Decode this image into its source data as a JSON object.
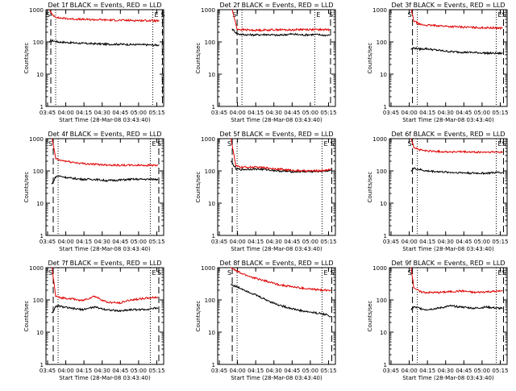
{
  "common": {
    "ylabel": "Counts/sec",
    "xlabel": "Start Time (28-Mar-08 03:43:40)",
    "xtick_labels": [
      "03:45",
      "04:00",
      "04:15",
      "04:30",
      "04:45",
      "05:00",
      "05:15"
    ],
    "ytick_labels": [
      "1",
      "10",
      "100",
      "1000"
    ],
    "yscale": "log",
    "ylim": [
      1,
      1000
    ],
    "xlim_minutes_after_start": [
      0,
      97
    ],
    "marker_labels": {
      "start": "S",
      "end": "E"
    },
    "colors": {
      "events": "#000000",
      "lld": "#e00000",
      "axes": "#000000"
    }
  },
  "chart_data": [
    {
      "type": "line",
      "title": "Det 1f BLACK = Events, RED = LLD",
      "x_minutes": [
        3,
        5,
        10,
        20,
        30,
        40,
        50,
        60,
        70,
        80,
        90,
        93
      ],
      "series": [
        {
          "name": "Events",
          "values": [
            100,
            110,
            100,
            95,
            90,
            88,
            85,
            85,
            83,
            82,
            80,
            80
          ]
        },
        {
          "name": "LLD",
          "values": [
            1000,
            700,
            560,
            520,
            500,
            490,
            480,
            470,
            465,
            460,
            455,
            450
          ]
        }
      ],
      "dashed_markers_minutes": [
        4,
        96
      ],
      "dotted_markers_minutes": [
        8,
        88
      ]
    },
    {
      "type": "line",
      "title": "Det 2f BLACK = Events, RED = LLD",
      "x_minutes": [
        12,
        16,
        20,
        30,
        40,
        50,
        60,
        70,
        80,
        90,
        92
      ],
      "series": [
        {
          "name": "Events",
          "values": [
            250,
            180,
            170,
            165,
            170,
            160,
            175,
            165,
            170,
            160,
            160
          ]
        },
        {
          "name": "LLD",
          "values": [
            1000,
            250,
            240,
            230,
            235,
            240,
            235,
            245,
            240,
            240,
            240
          ]
        }
      ],
      "dashed_markers_minutes": [
        16,
        93
      ],
      "dotted_markers_minutes": [
        20,
        80
      ]
    },
    {
      "type": "line",
      "title": "Det 3f BLACK = Events, RED = LLD",
      "x_minutes": [
        18,
        20,
        25,
        30,
        40,
        50,
        60,
        70,
        80,
        90,
        93
      ],
      "series": [
        {
          "name": "Events",
          "values": [
            60,
            65,
            60,
            62,
            55,
            50,
            48,
            47,
            45,
            44,
            45
          ]
        },
        {
          "name": "LLD",
          "values": [
            1000,
            450,
            350,
            330,
            320,
            300,
            290,
            280,
            275,
            270,
            270
          ]
        }
      ],
      "dashed_markers_minutes": [
        19,
        94
      ],
      "dotted_markers_minutes": [
        23,
        88
      ]
    },
    {
      "type": "line",
      "title": "Det 4f BLACK = Events, RED = LLD",
      "x_minutes": [
        5,
        8,
        10,
        20,
        30,
        40,
        50,
        60,
        70,
        80,
        90,
        92
      ],
      "series": [
        {
          "name": "Events",
          "values": [
            40,
            65,
            70,
            60,
            55,
            55,
            50,
            52,
            55,
            55,
            55,
            55
          ]
        },
        {
          "name": "LLD",
          "values": [
            1000,
            250,
            220,
            190,
            170,
            160,
            155,
            150,
            150,
            150,
            150,
            150
          ]
        }
      ],
      "dashed_markers_minutes": [
        6,
        93
      ],
      "dotted_markers_minutes": [
        10,
        86
      ]
    },
    {
      "type": "line",
      "title": "Det 5f BLACK = Events, RED = LLD",
      "x_minutes": [
        11,
        15,
        20,
        30,
        40,
        50,
        60,
        70,
        80,
        90,
        93
      ],
      "series": [
        {
          "name": "Events",
          "values": [
            200,
            115,
            110,
            115,
            110,
            100,
            95,
            95,
            95,
            100,
            105
          ]
        },
        {
          "name": "LLD",
          "values": [
            1000,
            140,
            130,
            130,
            125,
            115,
            105,
            100,
            100,
            105,
            115
          ]
        }
      ],
      "dashed_markers_minutes": [
        12,
        94
      ],
      "dotted_markers_minutes": [
        16,
        86
      ]
    },
    {
      "type": "line",
      "title": "Det 6f BLACK = Events, RED = LLD",
      "x_minutes": [
        18,
        20,
        25,
        30,
        40,
        50,
        60,
        70,
        80,
        90,
        93
      ],
      "series": [
        {
          "name": "Events",
          "values": [
            100,
            120,
            110,
            100,
            95,
            90,
            88,
            85,
            85,
            90,
            90
          ]
        },
        {
          "name": "LLD",
          "values": [
            1000,
            550,
            450,
            420,
            400,
            390,
            390,
            380,
            380,
            385,
            390
          ]
        }
      ],
      "dashed_markers_minutes": [
        19,
        94
      ],
      "dotted_markers_minutes": [
        23,
        88
      ]
    },
    {
      "type": "line",
      "title": "Det 7f BLACK = Events, RED = LLD",
      "x_minutes": [
        5,
        8,
        10,
        20,
        30,
        40,
        50,
        60,
        70,
        80,
        90,
        92
      ],
      "series": [
        {
          "name": "Events",
          "values": [
            40,
            60,
            65,
            55,
            50,
            60,
            50,
            45,
            50,
            50,
            55,
            55
          ]
        },
        {
          "name": "LLD",
          "values": [
            1000,
            130,
            120,
            110,
            95,
            130,
            85,
            80,
            100,
            110,
            120,
            120
          ]
        }
      ],
      "dashed_markers_minutes": [
        6,
        93
      ],
      "dotted_markers_minutes": [
        10,
        86
      ]
    },
    {
      "type": "line",
      "title": "Det 8f BLACK = Events, RED = LLD",
      "x_minutes": [
        11,
        15,
        20,
        30,
        40,
        50,
        60,
        70,
        80,
        90,
        93
      ],
      "series": [
        {
          "name": "Events",
          "values": [
            300,
            260,
            220,
            150,
            100,
            70,
            55,
            45,
            40,
            35,
            30
          ]
        },
        {
          "name": "LLD",
          "values": [
            1000,
            800,
            650,
            480,
            380,
            300,
            260,
            230,
            210,
            200,
            200
          ]
        }
      ],
      "dashed_markers_minutes": [
        12,
        94
      ],
      "dotted_markers_minutes": [
        16,
        86
      ]
    },
    {
      "type": "line",
      "title": "Det 9f BLACK = Events, RED = LLD",
      "x_minutes": [
        18,
        20,
        25,
        30,
        40,
        50,
        60,
        70,
        80,
        90,
        93
      ],
      "series": [
        {
          "name": "Events",
          "values": [
            50,
            60,
            55,
            50,
            55,
            65,
            60,
            55,
            60,
            55,
            55
          ]
        },
        {
          "name": "LLD",
          "values": [
            1000,
            250,
            180,
            170,
            170,
            180,
            190,
            170,
            180,
            185,
            190
          ]
        }
      ],
      "dashed_markers_minutes": [
        19,
        94
      ],
      "dotted_markers_minutes": [
        23,
        88
      ]
    }
  ]
}
